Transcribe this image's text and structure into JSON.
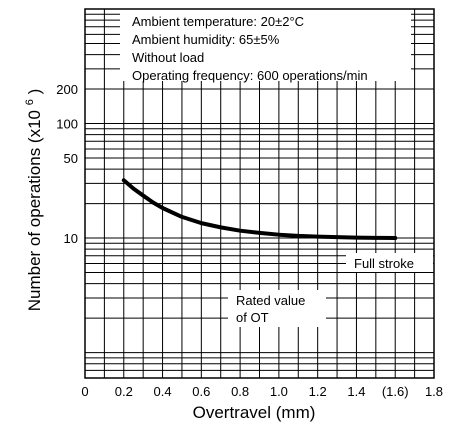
{
  "chart_data": {
    "type": "line",
    "xlabel": "Overtravel (mm)",
    "ylabel": "Number of operations",
    "ylabel_unit": "(x10",
    "ylabel_exp": "6",
    "ylabel_close": ")",
    "x_scale": "linear",
    "y_scale": "log",
    "xlim": [
      0,
      1.8
    ],
    "ylim": [
      0.6,
      1000
    ],
    "grid": true,
    "x_ticks": [
      0,
      0.2,
      0.4,
      0.6,
      0.8,
      1.0,
      1.2,
      1.4,
      1.6,
      1.8
    ],
    "x_tick_labels": [
      "0",
      "0.2",
      "0.4",
      "0.6",
      "0.8",
      "1.0",
      "1.2",
      "1.4",
      "(1.6)",
      "1.8"
    ],
    "y_ticks": [
      10,
      50,
      100,
      200
    ],
    "y_tick_labels": [
      "10",
      "50",
      "100",
      "200"
    ],
    "conditions": [
      "Ambient temperature: 20±2°C",
      "Ambient humidity: 65±5%",
      "Without load",
      "Operating frequency: 600 operations/min"
    ],
    "annotations": {
      "full_stroke": "Full stroke",
      "rated_line1": "Rated value",
      "rated_line2": "of OT"
    },
    "series": [
      {
        "x": [
          0.2,
          0.25,
          0.3,
          0.35,
          0.4,
          0.5,
          0.6,
          0.7,
          0.8,
          0.9,
          1.0,
          1.1,
          1.2,
          1.3,
          1.4,
          1.5,
          1.6
        ],
        "values": [
          32,
          27,
          23.5,
          20.5,
          18.3,
          15.3,
          13.5,
          12.4,
          11.6,
          11.1,
          10.7,
          10.45,
          10.3,
          10.2,
          10.1,
          10.05,
          10.0
        ]
      }
    ]
  }
}
